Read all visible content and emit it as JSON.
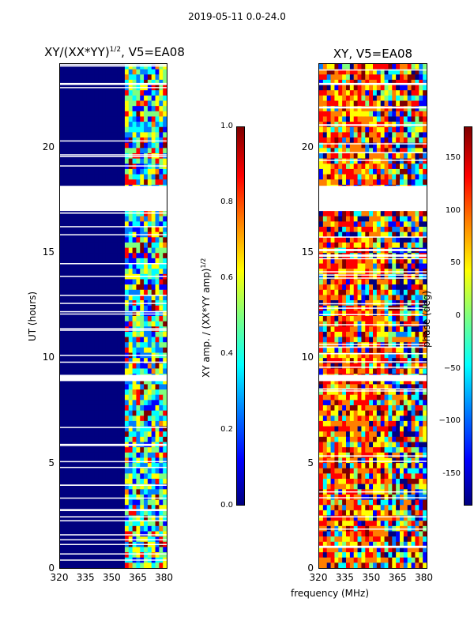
{
  "figure": {
    "suptitle": "2019-05-11 0.0-24.0"
  },
  "chart_data": [
    {
      "type": "heatmap",
      "title": "XY/(XX*YY)^{1/2}, V5=EA08",
      "title_main": "XY/(XX*YY)",
      "title_sup": "1/2",
      "title_rest": ", V5=EA08",
      "xlabel": "",
      "ylabel": "UT (hours)",
      "xlim": [
        320,
        382
      ],
      "ylim": [
        0,
        24
      ],
      "xticks": [
        "320",
        "335",
        "350",
        "365",
        "380"
      ],
      "yticks": [
        "0",
        "5",
        "10",
        "15",
        "20"
      ],
      "colorbar": {
        "label": "XY amp. / (XX*YY amp)^{1/2}",
        "label_main": "XY amp. / (XX*YY amp)",
        "label_sup": "1/2",
        "range": [
          0.0,
          1.0
        ],
        "ticks": [
          "0.0",
          "0.2",
          "0.4",
          "0.6",
          "0.8",
          "1.0"
        ]
      },
      "gaps_hours": [
        [
          17.0,
          18.2
        ],
        [
          8.9,
          9.2
        ],
        [
          23.0,
          23.1
        ]
      ]
    },
    {
      "type": "heatmap",
      "title": "XY, V5=EA08",
      "xlabel": "frequency (MHz)",
      "ylabel": "",
      "xlim": [
        320,
        382
      ],
      "ylim": [
        0,
        24
      ],
      "xticks": [
        "320",
        "335",
        "350",
        "365",
        "380"
      ],
      "yticks": [
        "0",
        "5",
        "10",
        "15",
        "20"
      ],
      "colorbar": {
        "label": "phase (deg)",
        "range": [
          -180,
          180
        ],
        "ticks": [
          "-150",
          "−100",
          "−50",
          "0",
          "50",
          "100",
          "150"
        ]
      },
      "gaps_hours": [
        [
          17.0,
          18.2
        ],
        [
          8.9,
          9.2
        ],
        [
          23.0,
          23.1
        ]
      ]
    }
  ],
  "colors": {
    "amp_background": "#00008b",
    "gap": "#ffffff"
  }
}
